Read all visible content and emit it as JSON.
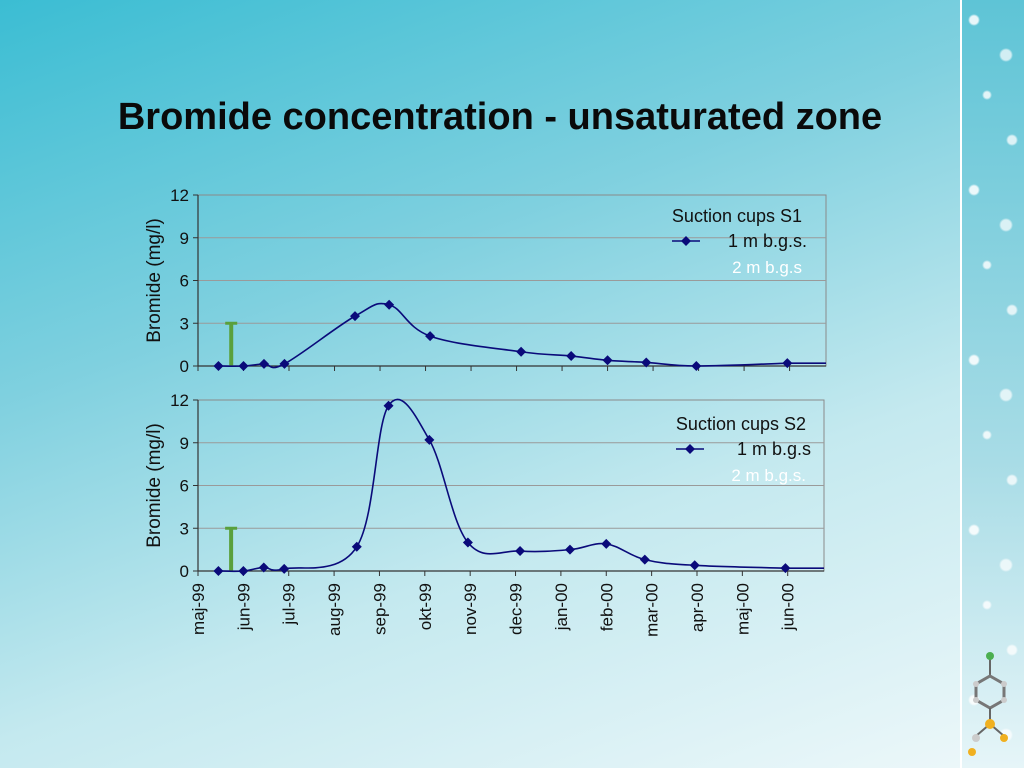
{
  "slide": {
    "title": "Bromide concentration - unsaturated zone"
  },
  "x_tick_labels": [
    "maj-99",
    "jun-99",
    "jul-99",
    "aug-99",
    "sep-99",
    "okt-99",
    "nov-99",
    "dec-99",
    "jan-00",
    "feb-00",
    "mar-00",
    "apr-00",
    "maj-00",
    "jun-00"
  ],
  "colors": {
    "series_1m": "#0a0a7a",
    "series_2m": "#ffffff",
    "marker_green": "#5aa03c"
  },
  "chart_data": [
    {
      "type": "line",
      "title": "",
      "ylabel": "Bromide (mg/l)",
      "ylim": [
        0,
        12
      ],
      "yticks": [
        0,
        3,
        6,
        9,
        12
      ],
      "xlim_months": [
        0,
        13.8
      ],
      "x_axis_visible_labels": false,
      "legend_title": "Suction cups S1",
      "legend_position": "top-right",
      "series": [
        {
          "name": "1 m b.g.s.",
          "x": [
            "maj-99",
            "jun-99",
            "jun-99",
            "jul-99",
            "aug-99",
            "sep-99",
            "okt-99",
            "dec-99",
            "jan-00",
            "feb-00",
            "mar-00",
            "apr-00",
            "jun-00"
          ],
          "xm": [
            0.45,
            1.0,
            1.45,
            1.9,
            3.45,
            4.2,
            5.1,
            7.1,
            8.2,
            9.0,
            9.85,
            10.95,
            12.95
          ],
          "values": [
            0,
            0,
            0.15,
            0.15,
            3.5,
            4.3,
            2.1,
            1.0,
            0.7,
            0.4,
            0.25,
            0,
            0.2
          ]
        },
        {
          "name": "2 m b.g.s",
          "x": [],
          "values": []
        }
      ],
      "event_marker": {
        "x": "jun-99",
        "xm": 0.73,
        "y_top": 3
      }
    },
    {
      "type": "line",
      "title": "",
      "ylabel": "Bromide (mg/l)",
      "ylim": [
        0,
        12
      ],
      "yticks": [
        0,
        3,
        6,
        9,
        12
      ],
      "xlim_months": [
        0,
        13.8
      ],
      "legend_title": "Suction cups  S2",
      "legend_position": "top-right",
      "series": [
        {
          "name": "1 m b.g.s",
          "x": [
            "maj-99",
            "jun-99",
            "jun-99",
            "jul-99",
            "aug-99",
            "sep-99",
            "okt-99",
            "nov-99",
            "dec-99",
            "jan-00",
            "feb-00",
            "mar-00",
            "apr-00",
            "jun-00"
          ],
          "xm": [
            0.45,
            1.0,
            1.45,
            1.9,
            3.5,
            4.2,
            5.1,
            5.95,
            7.1,
            8.2,
            9.0,
            9.85,
            10.95,
            12.95
          ],
          "values": [
            0,
            0,
            0.25,
            0.15,
            1.7,
            11.6,
            9.2,
            2.0,
            1.4,
            1.5,
            1.9,
            0.8,
            0.4,
            0.2
          ]
        },
        {
          "name": "2 m b.g.s.",
          "x": [],
          "values": []
        }
      ],
      "event_marker": {
        "x": "jun-99",
        "xm": 0.73,
        "y_top": 3
      }
    }
  ]
}
